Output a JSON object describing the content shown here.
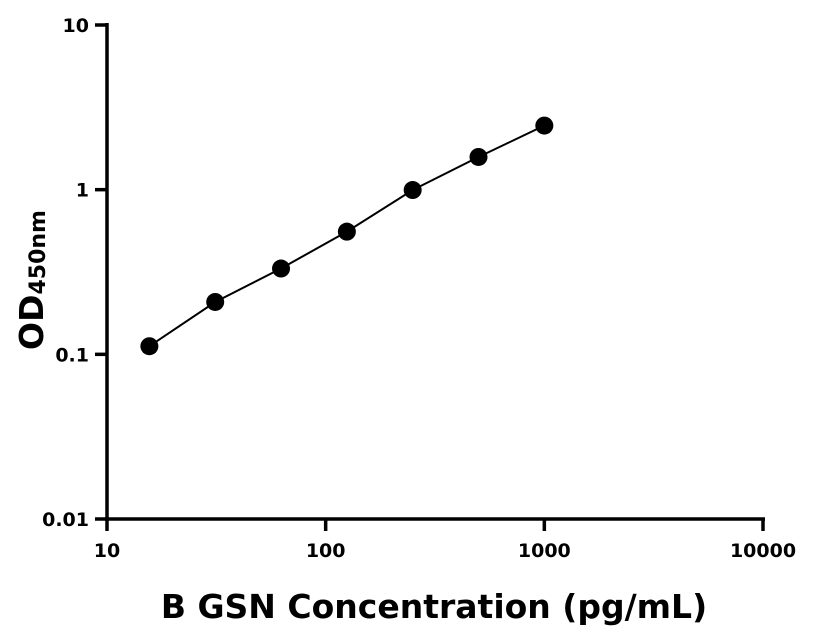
{
  "chart_data": {
    "type": "scatter",
    "xscale": "log",
    "yscale": "log",
    "xlim": [
      10,
      10000
    ],
    "ylim": [
      0.01,
      10
    ],
    "xlabel": "B GSN Concentration (pg/mL)",
    "ylabel": {
      "main": "OD",
      "sub": "450nm"
    },
    "x_ticks": [
      {
        "value": 10,
        "label": "10"
      },
      {
        "value": 100,
        "label": "100"
      },
      {
        "value": 1000,
        "label": "1000"
      },
      {
        "value": 10000,
        "label": "10000"
      }
    ],
    "y_ticks": [
      {
        "value": 0.01,
        "label": "0.01"
      },
      {
        "value": 0.1,
        "label": "0.1"
      },
      {
        "value": 1,
        "label": "1"
      },
      {
        "value": 10,
        "label": "10"
      }
    ],
    "grid": false,
    "series": [
      {
        "points": [
          {
            "x": 15.625,
            "y": 0.112
          },
          {
            "x": 31.25,
            "y": 0.208
          },
          {
            "x": 62.5,
            "y": 0.332
          },
          {
            "x": 125,
            "y": 0.556
          },
          {
            "x": 250,
            "y": 0.995
          },
          {
            "x": 500,
            "y": 1.58
          },
          {
            "x": 1000,
            "y": 2.45
          }
        ],
        "marker": "circle",
        "color": "#000000",
        "fit_line": true
      }
    ]
  }
}
